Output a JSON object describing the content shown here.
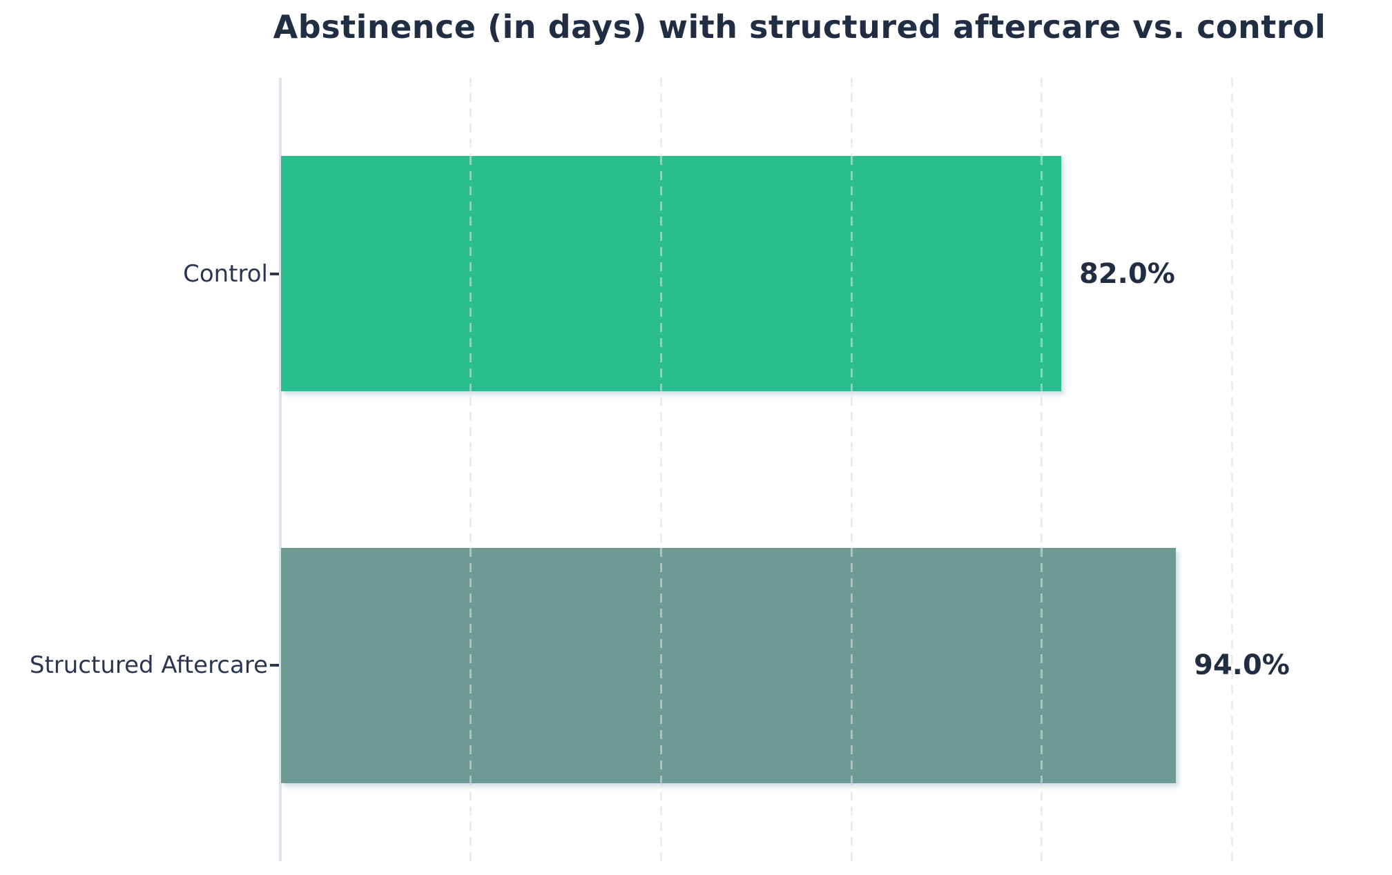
{
  "chart_data": {
    "type": "bar",
    "orientation": "horizontal",
    "title": "Abstinence (in days) with structured aftercare vs. control",
    "categories": [
      "Control",
      "Structured Aftercare"
    ],
    "values": [
      82.0,
      94.0
    ],
    "value_labels": [
      "82.0%",
      "94.0%"
    ],
    "bar_colors": [
      "#2abd8e",
      "#6e9a94"
    ],
    "xlabel": "",
    "ylabel": "",
    "xlim": [
      0,
      116.8
    ],
    "gridline_ticks": [
      20,
      40,
      60,
      80,
      100
    ],
    "grid": "vertical-dashed",
    "legend": "none",
    "axis_line_color": "#dde4ed",
    "text_color": "#212d42"
  }
}
